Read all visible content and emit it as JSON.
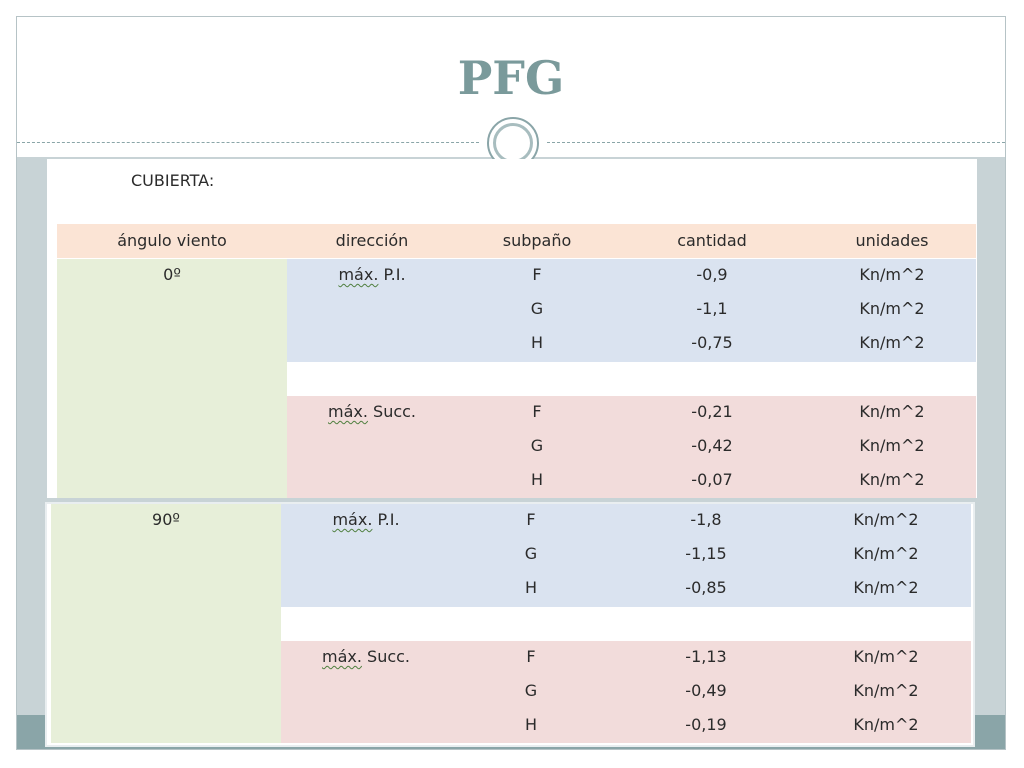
{
  "slide": {
    "title": "PFG"
  },
  "section": {
    "label": "CUBIERTA:"
  },
  "table": {
    "headers": [
      "ángulo viento",
      "dirección",
      "subpaño",
      "cantidad",
      "unidades"
    ],
    "groups": [
      {
        "angle": "0º",
        "blocks": [
          {
            "direction_word": "máx.",
            "direction_rest": "P.I.",
            "rows": [
              {
                "subpano": "F",
                "cantidad": "-0,9",
                "unidades": "Kn/m^2"
              },
              {
                "subpano": "G",
                "cantidad": "-1,1",
                "unidades": "Kn/m^2"
              },
              {
                "subpano": "H",
                "cantidad": "-0,75",
                "unidades": "Kn/m^2"
              }
            ]
          },
          {
            "direction_word": "máx.",
            "direction_rest": "Succ.",
            "rows": [
              {
                "subpano": "F",
                "cantidad": "-0,21",
                "unidades": "Kn/m^2"
              },
              {
                "subpano": "G",
                "cantidad": "-0,42",
                "unidades": "Kn/m^2"
              },
              {
                "subpano": "H",
                "cantidad": "-0,07",
                "unidades": "Kn/m^2"
              }
            ]
          }
        ]
      },
      {
        "angle": "90º",
        "blocks": [
          {
            "direction_word": "máx.",
            "direction_rest": "P.I.",
            "rows": [
              {
                "subpano": "F",
                "cantidad": "-1,8",
                "unidades": "Kn/m^2"
              },
              {
                "subpano": "G",
                "cantidad": "-1,15",
                "unidades": "Kn/m^2"
              },
              {
                "subpano": "H",
                "cantidad": "-0,85",
                "unidades": "Kn/m^2"
              }
            ]
          },
          {
            "direction_word": "máx.",
            "direction_rest": "Succ.",
            "rows": [
              {
                "subpano": "F",
                "cantidad": "-1,13",
                "unidades": "Kn/m^2"
              },
              {
                "subpano": "G",
                "cantidad": "-0,49",
                "unidades": "Kn/m^2"
              },
              {
                "subpano": "H",
                "cantidad": "-0,19",
                "unidades": "Kn/m^2"
              }
            ]
          }
        ]
      }
    ]
  },
  "colors": {
    "title": "#7a9a9b",
    "header_band": "#fbe4d5",
    "angle_cell": "#e7efd9",
    "pi_block": "#dae3f0",
    "succ_block": "#f2dcdb",
    "accent": "#8aa5a8"
  }
}
